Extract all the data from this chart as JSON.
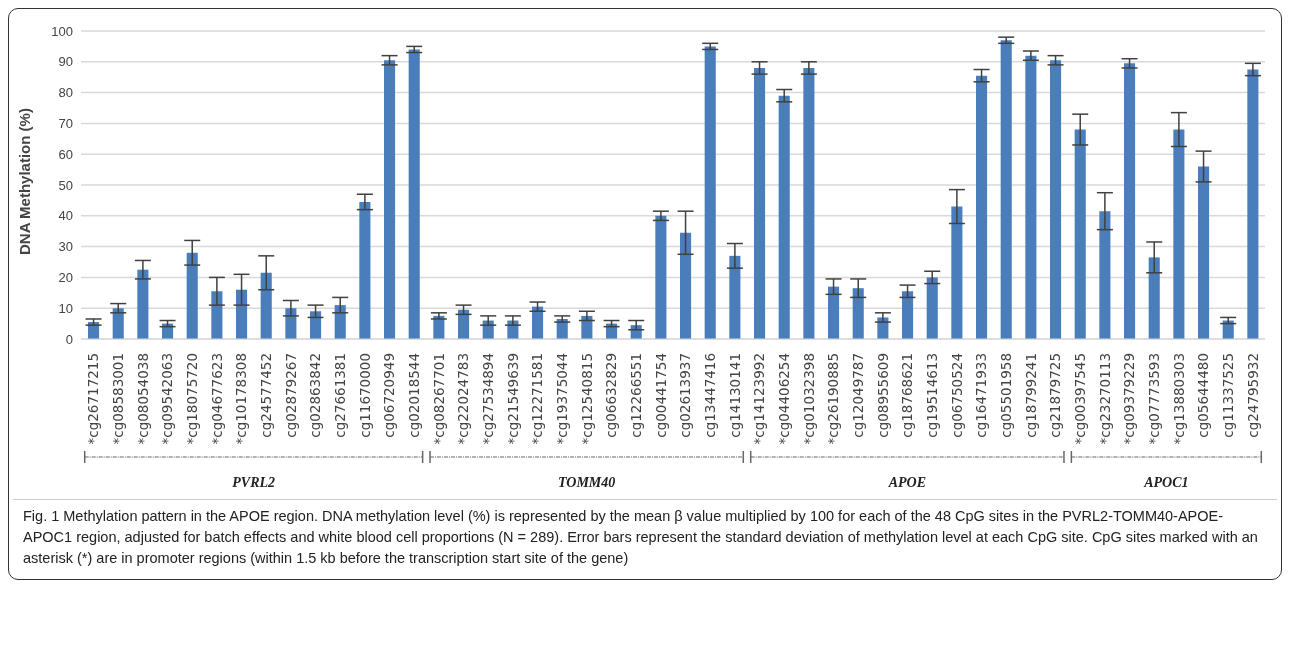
{
  "chart_data": {
    "type": "bar",
    "ylabel": "DNA Methylation (%)",
    "categories": [
      "*cg26717215",
      "*cg08583001",
      "*cg08054038",
      "*cg09542063",
      "*cg18075720",
      "*cg04677623",
      "*cg10178308",
      "cg24577452",
      "cg02879267",
      "cg02863842",
      "cg27661381",
      "cg11670000",
      "cg06720949",
      "cg02018544",
      "*cg08267701",
      "*cg22024783",
      "*cg27534894",
      "*cg21549639",
      "*cg12271581",
      "*cg19375044",
      "*cg12540815",
      "cg06632829",
      "cg12266551",
      "cg00441754",
      "cg02613937",
      "cg13447416",
      "cg14130141",
      "*cg14123992",
      "*cg04406254",
      "*cg01032398",
      "*cg26190885",
      "cg12049787",
      "cg08955609",
      "cg18768621",
      "cg19514613",
      "cg06750524",
      "cg16471933",
      "cg05501958",
      "cg18799241",
      "cg21879725",
      "*cg00397545",
      "*cg23270113",
      "*cg09379229",
      "*cg07773593",
      "*cg13880303",
      "cg05644480",
      "cg11337525",
      "cg24795932"
    ],
    "values": [
      5.5,
      10,
      22.5,
      5,
      28,
      15.5,
      16,
      21.5,
      10,
      9,
      11,
      44.5,
      90.5,
      94,
      7.5,
      9.5,
      6,
      6,
      10.5,
      6.5,
      7.5,
      5,
      4.5,
      40,
      34.5,
      95,
      27,
      88,
      79,
      88,
      17,
      16.5,
      7,
      15.5,
      20,
      43,
      85.5,
      97,
      92,
      90.5,
      68,
      41.5,
      89.5,
      26.5,
      68,
      56,
      6,
      87.5
    ],
    "errors": [
      1,
      1.5,
      3,
      1,
      4,
      4.5,
      5,
      5.5,
      2.5,
      2,
      2.5,
      2.5,
      1.5,
      1,
      1,
      1.5,
      1.5,
      1.5,
      1.5,
      1,
      1.5,
      1,
      1.5,
      1.5,
      7,
      1,
      4,
      2,
      2,
      2,
      2.5,
      3,
      1.5,
      2,
      2,
      5.5,
      2,
      1,
      1.5,
      1.5,
      5,
      6,
      1.5,
      5,
      5.5,
      5,
      1,
      2
    ],
    "color": "#4a7ebb",
    "ylim": [
      0,
      100
    ],
    "yticks": [
      0,
      10,
      20,
      30,
      40,
      50,
      60,
      70,
      80,
      90,
      100
    ],
    "grid": "y",
    "annotations": [
      "PVRL2",
      "TOMM40",
      "APOE",
      "APOC1",
      "Fig. 1 Methylation pattern in the APOE region. DNA methylation level (%) is represented by the mean β value multiplied by 100 for each of the 48 CpG sites in the PVRL2-TOMM40-APOE-APOC1 region, adjusted for batch effects and white blood cell proportions (N = 289). Error bars represent the standard deviation of methylation level at each CpG site. CpG sites marked with an asterisk (*) are in promoter regions (within 1.5 kb before the transcription start site of the gene)"
    ]
  }
}
